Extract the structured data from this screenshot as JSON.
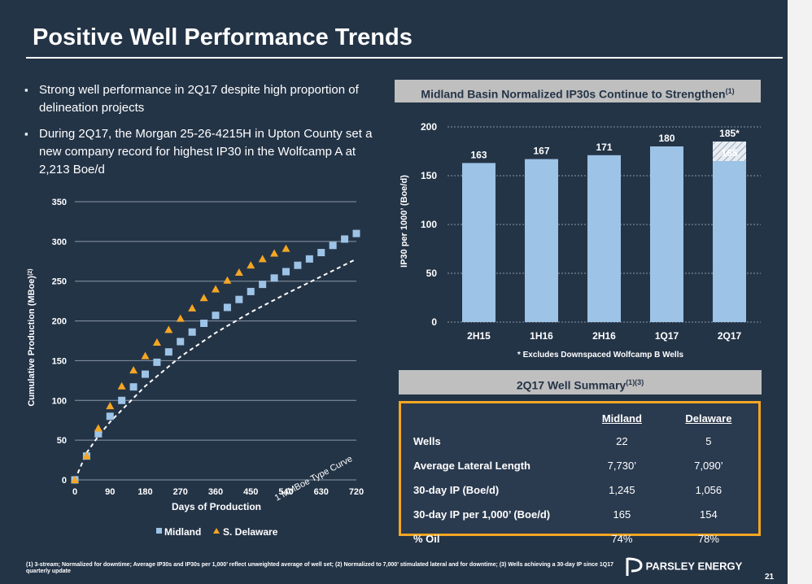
{
  "title": "Positive Well Performance Trends",
  "bullets": [
    "Strong well performance in 2Q17 despite high proportion of delineation projects",
    "During 2Q17, the Morgan 25-26-4215H in Upton County set a new company record for highest IP30 in the Wolfcamp A at 2,213 Boe/d"
  ],
  "bar_header": "Midland Basin Normalized IP30s Continue to Strengthen",
  "bar_header_sup": "(1)",
  "bar_note": "* Excludes Downspaced Wolfcamp B Wells",
  "summary_header": "2Q17 Well Summary",
  "summary_header_sup": "(1)(3)",
  "summary_table": {
    "columns": [
      "Midland",
      "Delaware"
    ],
    "rows": [
      {
        "label": "Wells",
        "values": [
          "22",
          "5"
        ]
      },
      {
        "label": "Average Lateral Length",
        "values": [
          "7,730’",
          "7,090’"
        ]
      },
      {
        "label": "30-day IP (Boe/d)",
        "values": [
          "1,245",
          "1,056"
        ]
      },
      {
        "label": "30-day IP per 1,000’ (Boe/d)",
        "values": [
          "165",
          "154"
        ]
      },
      {
        "label": "% Oil",
        "values": [
          "74%",
          "78%"
        ]
      }
    ]
  },
  "footnote": "(1) 3-stream; Normalized for downtime; Average IP30s and IP30s per 1,000’ reflect unweighted average of well set; (2) Normalized to 7,000’ stimulated lateral and for downtime; (3) Wells achieving a 30-day IP since 1Q17 quarterly update",
  "logo_text": "PARSLEY ENERGY",
  "page_number": "21",
  "colors": {
    "background": "#243447",
    "bar": "#9dc3e6",
    "midland": "#9dc3e6",
    "delaware": "#f5a623",
    "accent_border": "#f5a623"
  },
  "chart_data": [
    {
      "type": "scatter",
      "title": "",
      "xlabel": "Days of Production",
      "ylabel": "Cumulative Production (MBoe)",
      "ylabel_sup": "(2)",
      "xlim": [
        0,
        720
      ],
      "ylim": [
        0,
        350
      ],
      "xticks": [
        0,
        90,
        180,
        270,
        360,
        450,
        540,
        630,
        720
      ],
      "yticks": [
        0,
        50,
        100,
        150,
        200,
        250,
        300,
        350
      ],
      "grid": true,
      "legend": "bottom",
      "series": [
        {
          "name": "Midland",
          "marker": "square",
          "x": [
            0,
            30,
            60,
            90,
            120,
            150,
            180,
            210,
            240,
            270,
            300,
            330,
            360,
            390,
            420,
            450,
            480,
            510,
            540,
            570,
            600,
            630,
            660,
            690,
            720
          ],
          "y": [
            0,
            30,
            58,
            80,
            100,
            117,
            133,
            148,
            161,
            174,
            186,
            197,
            207,
            217,
            227,
            237,
            246,
            254,
            262,
            270,
            278,
            286,
            295,
            303,
            310
          ]
        },
        {
          "name": "S. Delaware",
          "marker": "triangle",
          "x": [
            0,
            30,
            60,
            90,
            120,
            150,
            180,
            210,
            240,
            270,
            300,
            330,
            360,
            390,
            420,
            450,
            480,
            510,
            540
          ],
          "y": [
            0,
            30,
            65,
            93,
            118,
            138,
            156,
            173,
            189,
            203,
            216,
            229,
            240,
            251,
            261,
            270,
            278,
            285,
            291
          ]
        }
      ],
      "reference_curve": {
        "label": "1 MMBoe Type Curve",
        "x": [
          0,
          30,
          60,
          90,
          180,
          270,
          360,
          450,
          540,
          630,
          720
        ],
        "y": [
          0,
          34,
          55,
          73,
          118,
          155,
          185,
          211,
          234,
          256,
          278
        ]
      }
    },
    {
      "type": "bar",
      "title": "Midland Basin Normalized IP30s Continue to Strengthen",
      "xlabel": "",
      "ylabel": "IP30 per 1000’ (Boe/d)",
      "categories": [
        "2H15",
        "1H16",
        "2H16",
        "1Q17",
        "2Q17"
      ],
      "values": [
        163,
        167,
        171,
        180,
        185
      ],
      "value_labels": [
        "163",
        "167",
        "171",
        "180",
        "185*"
      ],
      "inner_value": {
        "category": "2Q17",
        "value": 165,
        "label": "165"
      },
      "ylim": [
        0,
        200
      ],
      "yticks": [
        0,
        50,
        100,
        150,
        200
      ],
      "grid": true
    }
  ]
}
